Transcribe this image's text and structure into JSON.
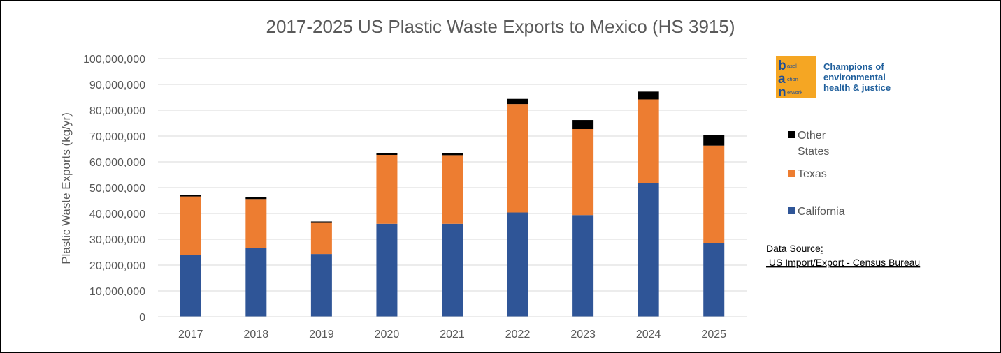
{
  "chart_data": {
    "type": "bar",
    "stacked": true,
    "title": "2017-2025 US Plastic Waste Exports to Mexico (HS 3915)",
    "ylabel": "Plastic Waste Exports (kg/yr)",
    "xlabel": "",
    "categories": [
      "2017",
      "2018",
      "2019",
      "2020",
      "2021",
      "2022",
      "2023",
      "2024",
      "2025"
    ],
    "ylim": [
      0,
      100000000
    ],
    "yticks": [
      0,
      10000000,
      20000000,
      30000000,
      40000000,
      50000000,
      60000000,
      70000000,
      80000000,
      90000000,
      100000000
    ],
    "ytick_labels": [
      "0",
      "10,000,000",
      "20,000,000",
      "30,000,000",
      "40,000,000",
      "50,000,000",
      "60,000,000",
      "70,000,000",
      "80,000,000",
      "90,000,000",
      "100,000,000"
    ],
    "grid": true,
    "legend_position": "right",
    "series": [
      {
        "name": "California",
        "color": "#2f5597",
        "values": [
          24000000,
          26700000,
          24300000,
          36000000,
          36000000,
          40400000,
          39400000,
          51700000,
          28500000
        ]
      },
      {
        "name": "Texas",
        "color": "#ed7d31",
        "values": [
          22600000,
          18900000,
          12300000,
          26700000,
          26600000,
          42000000,
          33300000,
          32500000,
          37800000
        ]
      },
      {
        "name": "Other States",
        "color": "#000000",
        "values": [
          500000,
          800000,
          300000,
          600000,
          700000,
          2000000,
          3500000,
          3000000,
          4000000
        ]
      }
    ]
  },
  "legend": {
    "entries": [
      {
        "label_lines": [
          "Other",
          "States"
        ],
        "color": "#000000"
      },
      {
        "label_lines": [
          "Texas"
        ],
        "color": "#ed7d31"
      },
      {
        "label_lines": [
          "California"
        ],
        "color": "#2f5597"
      }
    ]
  },
  "logo": {
    "letters": [
      "b",
      "a",
      "n"
    ],
    "words": [
      "asel",
      "ction",
      "etwork"
    ],
    "tagline": [
      "Champions of",
      "environmental",
      "health & justice"
    ],
    "box_color": "#f5a623",
    "text_color": "#1f4e96"
  },
  "source": {
    "label": "Data Source",
    "colon": ":",
    "text": " US Import/Export - Census Bureau"
  }
}
